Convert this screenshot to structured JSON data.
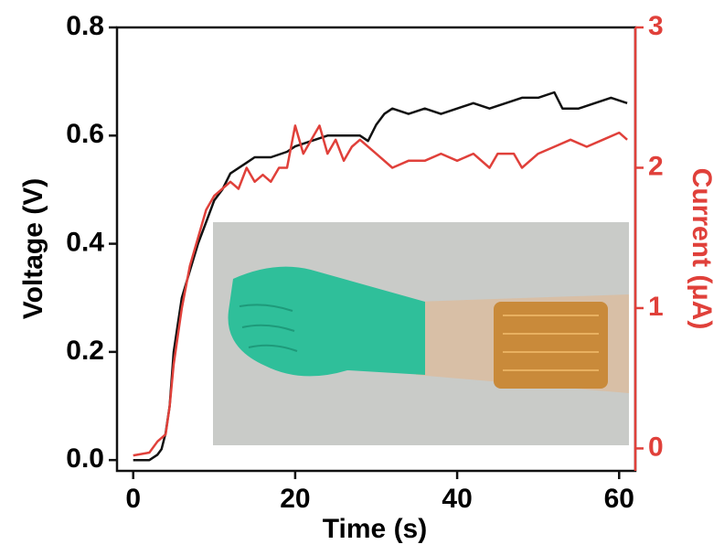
{
  "chart_data": {
    "type": "line",
    "xlabel": "Time (s)",
    "ylabel": "Voltage (V)",
    "y2label": "Current (μA)",
    "xlim": [
      -2,
      62
    ],
    "xticks": [
      0,
      20,
      40,
      60
    ],
    "ylim": [
      -0.02,
      0.8
    ],
    "yticks": [
      {
        "value": 0,
        "label": "0.0"
      },
      0.2,
      0.4,
      0.6,
      0.8
    ],
    "y2lim": [
      -0.16,
      3
    ],
    "y2ticks": [
      0,
      1,
      2,
      3
    ],
    "y2color": "#e0403a",
    "series": [
      {
        "color": "#111111",
        "x": [
          0,
          2,
          3,
          3.5,
          4,
          4.5,
          5,
          5.5,
          6,
          7,
          8,
          9,
          10,
          11,
          12,
          13,
          14,
          15,
          17,
          19,
          20,
          22,
          24,
          26,
          28,
          29,
          30,
          31,
          32,
          34,
          36,
          38,
          40,
          42,
          44,
          46,
          48,
          50,
          52,
          53,
          55,
          57,
          59,
          61
        ],
        "values": [
          0.0,
          0.0,
          0.01,
          0.02,
          0.05,
          0.1,
          0.2,
          0.25,
          0.3,
          0.35,
          0.4,
          0.44,
          0.48,
          0.5,
          0.53,
          0.54,
          0.55,
          0.56,
          0.56,
          0.57,
          0.58,
          0.59,
          0.6,
          0.6,
          0.6,
          0.59,
          0.62,
          0.64,
          0.65,
          0.64,
          0.65,
          0.64,
          0.65,
          0.66,
          0.65,
          0.66,
          0.67,
          0.67,
          0.68,
          0.65,
          0.65,
          0.66,
          0.67,
          0.66
        ]
      },
      {
        "color": "#e0403a",
        "axis": "y2",
        "x": [
          0,
          2,
          3,
          4,
          4.5,
          5,
          6,
          7,
          8,
          9,
          10,
          11,
          12,
          13,
          14,
          15,
          16,
          17,
          18,
          19,
          20,
          21,
          22,
          23,
          24,
          25,
          26,
          27,
          28,
          30,
          32,
          34,
          36,
          38,
          40,
          42,
          44,
          45,
          47,
          48,
          50,
          52,
          54,
          56,
          58,
          60,
          61
        ],
        "values": [
          -0.05,
          -0.03,
          0.05,
          0.1,
          0.3,
          0.6,
          1.0,
          1.3,
          1.5,
          1.7,
          1.8,
          1.85,
          1.9,
          1.85,
          2.0,
          1.9,
          1.95,
          1.9,
          2.0,
          2.0,
          2.3,
          2.1,
          2.2,
          2.3,
          2.1,
          2.2,
          2.05,
          2.15,
          2.2,
          2.1,
          2.0,
          2.05,
          2.05,
          2.1,
          2.05,
          2.1,
          2.0,
          2.1,
          2.1,
          2.0,
          2.1,
          2.15,
          2.2,
          2.15,
          2.2,
          2.25,
          2.2
        ]
      }
    ]
  }
}
